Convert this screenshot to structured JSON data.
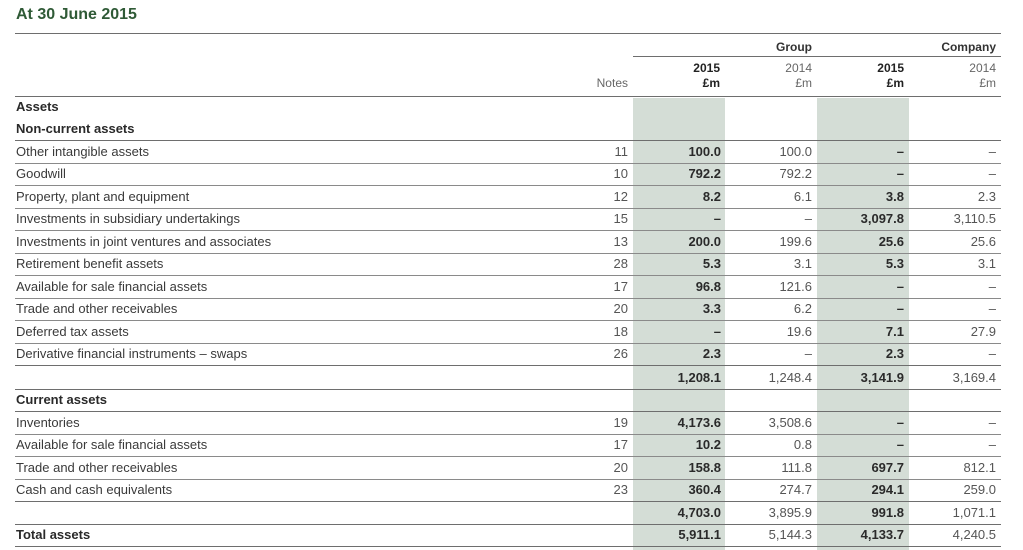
{
  "title": "At 30 June 2015",
  "header": {
    "group_label": "Group",
    "company_label": "Company",
    "notes_label": "Notes",
    "group_2015": "2015",
    "group_2015_unit": "£m",
    "group_2014": "2014",
    "group_2014_unit": "£m",
    "company_2015": "2015",
    "company_2015_unit": "£m",
    "company_2014": "2014",
    "company_2014_unit": "£m"
  },
  "rows": [
    {
      "label": "Assets",
      "type": "heading",
      "note": "",
      "g15": "",
      "g14": "",
      "c15": "",
      "c14": ""
    },
    {
      "label": "Non-current assets",
      "type": "heading",
      "note": "",
      "g15": "",
      "g14": "",
      "c15": "",
      "c14": ""
    },
    {
      "label": "Other intangible assets",
      "type": "item",
      "note": "11",
      "g15": "100.0",
      "g14": "100.0",
      "c15": "–",
      "c14": "–"
    },
    {
      "label": "Goodwill",
      "type": "item",
      "note": "10",
      "g15": "792.2",
      "g14": "792.2",
      "c15": "–",
      "c14": "–"
    },
    {
      "label": "Property, plant and equipment",
      "type": "item",
      "note": "12",
      "g15": "8.2",
      "g14": "6.1",
      "c15": "3.8",
      "c14": "2.3"
    },
    {
      "label": "Investments in subsidiary undertakings",
      "type": "item",
      "note": "15",
      "g15": "–",
      "g14": "–",
      "c15": "3,097.8",
      "c14": "3,110.5"
    },
    {
      "label": "Investments in joint ventures and associates",
      "type": "item",
      "note": "13",
      "g15": "200.0",
      "g14": "199.6",
      "c15": "25.6",
      "c14": "25.6"
    },
    {
      "label": "Retirement benefit assets",
      "type": "item",
      "note": "28",
      "g15": "5.3",
      "g14": "3.1",
      "c15": "5.3",
      "c14": "3.1"
    },
    {
      "label": "Available for sale financial assets",
      "type": "item",
      "note": "17",
      "g15": "96.8",
      "g14": "121.6",
      "c15": "–",
      "c14": "–"
    },
    {
      "label": "Trade and other receivables",
      "type": "item",
      "note": "20",
      "g15": "3.3",
      "g14": "6.2",
      "c15": "–",
      "c14": "–"
    },
    {
      "label": "Deferred tax assets",
      "type": "item",
      "note": "18",
      "g15": "–",
      "g14": "19.6",
      "c15": "7.1",
      "c14": "27.9"
    },
    {
      "label": "Derivative financial instruments – swaps",
      "type": "item",
      "note": "26",
      "g15": "2.3",
      "g14": "–",
      "c15": "2.3",
      "c14": "–"
    },
    {
      "label": "",
      "type": "subtotal",
      "note": "",
      "g15": "1,208.1",
      "g14": "1,248.4",
      "c15": "3,141.9",
      "c14": "3,169.4"
    },
    {
      "label": "Current assets",
      "type": "heading",
      "note": "",
      "g15": "",
      "g14": "",
      "c15": "",
      "c14": ""
    },
    {
      "label": "Inventories",
      "type": "item",
      "note": "19",
      "g15": "4,173.6",
      "g14": "3,508.6",
      "c15": "–",
      "c14": "–"
    },
    {
      "label": "Available for sale financial assets",
      "type": "item",
      "note": "17",
      "g15": "10.2",
      "g14": "0.8",
      "c15": "–",
      "c14": "–"
    },
    {
      "label": "Trade and other receivables",
      "type": "item",
      "note": "20",
      "g15": "158.8",
      "g14": "111.8",
      "c15": "697.7",
      "c14": "812.1"
    },
    {
      "label": "Cash and cash equivalents",
      "type": "item",
      "note": "23",
      "g15": "360.4",
      "g14": "274.7",
      "c15": "294.1",
      "c14": "259.0"
    },
    {
      "label": "",
      "type": "subtotal",
      "note": "",
      "g15": "4,703.0",
      "g14": "3,895.9",
      "c15": "991.8",
      "c14": "1,071.1"
    },
    {
      "label": "Total assets",
      "type": "heading",
      "note": "",
      "g15": "5,911.1",
      "g14": "5,144.3",
      "c15": "4,133.7",
      "c14": "4,240.5"
    }
  ]
}
